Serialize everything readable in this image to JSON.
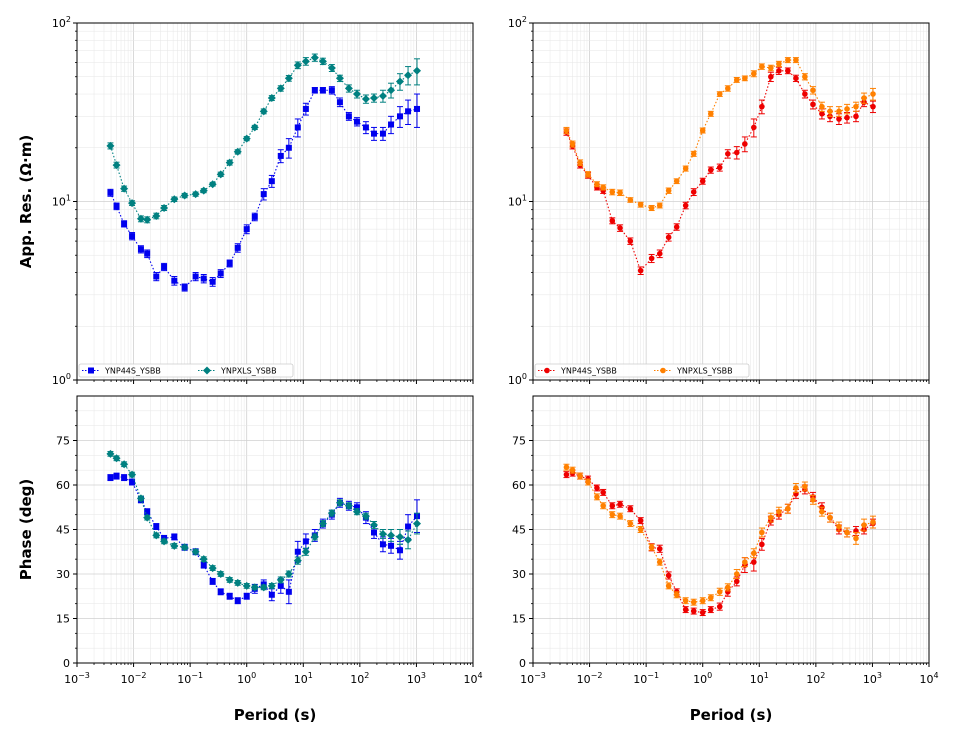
{
  "chart_data": [
    {
      "type": "scatter",
      "panel": "top-left",
      "ylabel": "App. Res. (Ω·m)",
      "xlabel": "",
      "x_scale": "log",
      "y_scale": "log",
      "xlim": [
        0.001,
        10000
      ],
      "ylim": [
        1,
        100
      ],
      "grid": true,
      "legend_placement": "lower-left",
      "series": [
        {
          "name": "YNP44S_YSBB",
          "color": "#0000ee",
          "marker": "square",
          "x": [
            0.0039,
            0.005,
            0.0068,
            0.0094,
            0.0135,
            0.0174,
            0.0252,
            0.0346,
            0.0525,
            0.08,
            0.125,
            0.174,
            0.25,
            0.347,
            0.5,
            0.694,
            1.0,
            1.389,
            2.0,
            2.778,
            4.0,
            5.556,
            8.0,
            11.11,
            16.0,
            22.22,
            32.0,
            44.44,
            64.0,
            88.89,
            128.0,
            177.8,
            256.0,
            355.6,
            512.0,
            711.1,
            1024.0
          ],
          "y": [
            11.2,
            9.4,
            7.5,
            6.4,
            5.4,
            5.1,
            3.8,
            4.3,
            3.6,
            3.3,
            3.8,
            3.7,
            3.55,
            3.95,
            4.5,
            5.5,
            7.0,
            8.2,
            11.0,
            13.0,
            18.0,
            20.0,
            26.0,
            33.0,
            42.0,
            42.0,
            42.0,
            36.0,
            30.0,
            28.0,
            26.0,
            24.0,
            24.0,
            27.0,
            30.0,
            32.0,
            33.0
          ],
          "err": [
            0.5,
            0.4,
            0.3,
            0.3,
            0.25,
            0.25,
            0.2,
            0.2,
            0.2,
            0.15,
            0.2,
            0.2,
            0.2,
            0.2,
            0.2,
            0.3,
            0.4,
            0.4,
            0.8,
            1.0,
            1.5,
            2.5,
            3.0,
            2.5,
            1.5,
            1.5,
            2.0,
            2.0,
            1.5,
            1.5,
            2.0,
            2.0,
            2.0,
            3.0,
            4.0,
            5.0,
            7.0
          ]
        },
        {
          "name": "YNPXLS_YSBB",
          "color": "#008080",
          "marker": "diamond",
          "x": [
            0.0039,
            0.005,
            0.0068,
            0.0094,
            0.0135,
            0.0174,
            0.0252,
            0.0346,
            0.0525,
            0.08,
            0.125,
            0.174,
            0.25,
            0.347,
            0.5,
            0.694,
            1.0,
            1.389,
            2.0,
            2.778,
            4.0,
            5.556,
            8.0,
            11.11,
            16.0,
            22.22,
            32.0,
            44.44,
            64.0,
            88.89,
            128.0,
            177.8,
            256.0,
            355.6,
            512.0,
            711.1,
            1024.0
          ],
          "y": [
            20.5,
            16.0,
            11.8,
            9.8,
            8.0,
            7.9,
            8.3,
            9.2,
            10.3,
            10.8,
            11.0,
            11.5,
            12.5,
            14.2,
            16.5,
            19.0,
            22.5,
            26.0,
            32.0,
            38.0,
            43.0,
            49.0,
            58.0,
            61.0,
            64.0,
            61.0,
            56.0,
            49.0,
            43.0,
            40.0,
            37.5,
            38.0,
            39.0,
            42.0,
            47.0,
            51.0,
            54.0
          ],
          "err": [
            0.8,
            0.6,
            0.4,
            0.3,
            0.3,
            0.3,
            0.3,
            0.3,
            0.3,
            0.3,
            0.3,
            0.3,
            0.3,
            0.4,
            0.5,
            0.5,
            0.6,
            0.7,
            1.0,
            1.2,
            1.5,
            1.8,
            2.5,
            3.0,
            3.0,
            2.5,
            2.5,
            2.0,
            2.0,
            2.0,
            2.0,
            2.0,
            3.0,
            4.0,
            5.0,
            6.0,
            9.0
          ]
        }
      ]
    },
    {
      "type": "scatter",
      "panel": "top-right",
      "ylabel": "",
      "xlabel": "",
      "x_scale": "log",
      "y_scale": "log",
      "xlim": [
        0.001,
        10000
      ],
      "ylim": [
        1,
        100
      ],
      "grid": true,
      "legend_placement": "lower-left",
      "series": [
        {
          "name": "YNP44S_YSBB",
          "color": "#ee0000",
          "marker": "circle",
          "x": [
            0.0039,
            0.005,
            0.0068,
            0.0094,
            0.0135,
            0.0174,
            0.0252,
            0.0346,
            0.0525,
            0.08,
            0.125,
            0.174,
            0.25,
            0.347,
            0.5,
            0.694,
            1.0,
            1.389,
            2.0,
            2.778,
            4.0,
            5.556,
            8.0,
            11.11,
            16.0,
            22.22,
            32.0,
            44.44,
            64.0,
            88.89,
            128.0,
            177.8,
            256.0,
            355.6,
            512.0,
            711.1,
            1024.0
          ],
          "y": [
            24.5,
            20.5,
            16.0,
            14.0,
            12.0,
            11.5,
            7.8,
            7.1,
            6.0,
            4.1,
            4.8,
            5.1,
            6.3,
            7.2,
            9.5,
            11.3,
            13.0,
            15.0,
            15.5,
            18.5,
            18.8,
            21.0,
            26.0,
            34.0,
            50.0,
            54.0,
            54.0,
            49.0,
            40.0,
            35.0,
            31.0,
            30.0,
            29.0,
            29.5,
            30.0,
            36.0,
            34.0
          ],
          "err": [
            1.0,
            0.8,
            0.6,
            0.5,
            0.4,
            0.4,
            0.3,
            0.3,
            0.25,
            0.2,
            0.25,
            0.25,
            0.3,
            0.3,
            0.4,
            0.5,
            0.5,
            0.6,
            0.7,
            1.0,
            1.5,
            2.0,
            3.0,
            3.0,
            3.0,
            2.5,
            2.0,
            2.0,
            2.0,
            2.0,
            2.0,
            2.0,
            2.0,
            2.0,
            2.0,
            2.0,
            2.5
          ]
        },
        {
          "name": "YNPXLS_YSBB",
          "color": "#ff8000",
          "marker": "circle",
          "x": [
            0.0039,
            0.005,
            0.0068,
            0.0094,
            0.0135,
            0.0174,
            0.0252,
            0.0346,
            0.0525,
            0.08,
            0.125,
            0.174,
            0.25,
            0.347,
            0.5,
            0.694,
            1.0,
            1.389,
            2.0,
            2.778,
            4.0,
            5.556,
            8.0,
            11.11,
            16.0,
            22.22,
            32.0,
            44.44,
            64.0,
            88.89,
            128.0,
            177.8,
            256.0,
            355.6,
            512.0,
            711.1,
            1024.0
          ],
          "y": [
            25.0,
            21.0,
            16.5,
            14.2,
            12.5,
            12.0,
            11.3,
            11.2,
            10.2,
            9.6,
            9.2,
            9.5,
            11.5,
            13.0,
            15.3,
            18.5,
            25.0,
            31.0,
            40.0,
            43.0,
            48.0,
            49.0,
            52.0,
            57.0,
            56.0,
            59.0,
            62.0,
            62.0,
            50.0,
            42.0,
            34.0,
            32.0,
            32.0,
            33.0,
            34.0,
            38.0,
            40.0
          ],
          "err": [
            1.0,
            0.8,
            0.6,
            0.5,
            0.4,
            0.4,
            0.4,
            0.4,
            0.3,
            0.3,
            0.3,
            0.3,
            0.4,
            0.4,
            0.5,
            0.6,
            0.8,
            1.0,
            1.2,
            1.5,
            1.5,
            1.5,
            2.0,
            2.0,
            2.0,
            2.0,
            2.0,
            2.0,
            2.0,
            2.0,
            2.0,
            2.0,
            2.0,
            2.0,
            2.0,
            2.5,
            3.0
          ]
        }
      ]
    },
    {
      "type": "scatter",
      "panel": "bottom-left",
      "ylabel": "Phase (deg)",
      "xlabel": "Period (s)",
      "x_scale": "log",
      "y_scale": "linear",
      "xlim": [
        0.001,
        10000
      ],
      "ylim": [
        0,
        90
      ],
      "grid": true,
      "series": [
        {
          "name": "YNP44S_YSBB",
          "color": "#0000ee",
          "marker": "square",
          "x": [
            0.0039,
            0.005,
            0.0068,
            0.0094,
            0.0135,
            0.0174,
            0.0252,
            0.0346,
            0.0525,
            0.08,
            0.125,
            0.174,
            0.25,
            0.347,
            0.5,
            0.694,
            1.0,
            1.389,
            2.0,
            2.778,
            4.0,
            5.556,
            8.0,
            11.11,
            16.0,
            22.22,
            32.0,
            44.44,
            64.0,
            88.89,
            128.0,
            177.8,
            256.0,
            355.6,
            512.0,
            711.1,
            1024.0
          ],
          "y": [
            62.5,
            63.0,
            62.5,
            61.0,
            55.0,
            51.0,
            46.0,
            42.0,
            42.5,
            39.0,
            37.5,
            33.0,
            27.5,
            24.0,
            22.5,
            21.0,
            22.5,
            25.0,
            26.5,
            23.0,
            26.0,
            24.0,
            37.5,
            41.0,
            43.0,
            47.0,
            50.0,
            54.0,
            53.0,
            52.5,
            49.0,
            44.0,
            40.0,
            39.5,
            38.0,
            46.0,
            49.5
          ],
          "err": [
            1.0,
            1.0,
            1.0,
            1.0,
            1.0,
            1.0,
            1.0,
            1.0,
            1.0,
            1.0,
            1.0,
            1.0,
            1.0,
            1.0,
            1.0,
            1.0,
            1.0,
            1.5,
            1.5,
            2.0,
            2.5,
            4.0,
            3.5,
            2.5,
            2.0,
            1.5,
            1.5,
            1.5,
            1.5,
            1.5,
            2.0,
            2.0,
            2.5,
            2.5,
            3.0,
            4.0,
            5.5
          ]
        },
        {
          "name": "YNPXLS_YSBB",
          "color": "#008080",
          "marker": "diamond",
          "x": [
            0.0039,
            0.005,
            0.0068,
            0.0094,
            0.0135,
            0.0174,
            0.0252,
            0.0346,
            0.0525,
            0.08,
            0.125,
            0.174,
            0.25,
            0.347,
            0.5,
            0.694,
            1.0,
            1.389,
            2.0,
            2.778,
            4.0,
            5.556,
            8.0,
            11.11,
            16.0,
            22.22,
            32.0,
            44.44,
            64.0,
            88.89,
            128.0,
            177.8,
            256.0,
            355.6,
            512.0,
            711.1,
            1024.0
          ],
          "y": [
            70.5,
            69.0,
            67.0,
            63.5,
            55.5,
            49.0,
            43.0,
            41.0,
            39.5,
            39.0,
            37.5,
            35.0,
            32.0,
            30.0,
            28.0,
            27.0,
            26.0,
            25.5,
            25.5,
            26.0,
            28.0,
            30.0,
            34.5,
            37.5,
            42.5,
            47.0,
            50.5,
            54.0,
            53.0,
            51.0,
            49.5,
            46.5,
            43.5,
            43.0,
            42.5,
            41.5,
            47.0
          ],
          "err": [
            0.8,
            0.8,
            0.8,
            0.8,
            0.8,
            0.8,
            0.8,
            0.8,
            0.8,
            0.8,
            0.8,
            0.8,
            0.8,
            0.8,
            0.8,
            0.8,
            0.8,
            0.8,
            0.8,
            0.8,
            1.0,
            1.0,
            1.2,
            1.2,
            1.0,
            1.0,
            1.0,
            1.0,
            1.0,
            1.0,
            1.0,
            1.2,
            1.5,
            2.0,
            2.5,
            3.0,
            3.5
          ]
        }
      ]
    },
    {
      "type": "scatter",
      "panel": "bottom-right",
      "ylabel": "",
      "xlabel": "Period (s)",
      "x_scale": "log",
      "y_scale": "linear",
      "xlim": [
        0.001,
        10000
      ],
      "ylim": [
        0,
        90
      ],
      "grid": true,
      "series": [
        {
          "name": "YNP44S_YSBB",
          "color": "#ee0000",
          "marker": "circle",
          "x": [
            0.0039,
            0.005,
            0.0068,
            0.0094,
            0.0135,
            0.0174,
            0.0252,
            0.0346,
            0.0525,
            0.08,
            0.125,
            0.174,
            0.25,
            0.347,
            0.5,
            0.694,
            1.0,
            1.389,
            2.0,
            2.778,
            4.0,
            5.556,
            8.0,
            11.11,
            16.0,
            22.22,
            32.0,
            44.44,
            64.0,
            88.89,
            128.0,
            177.8,
            256.0,
            355.6,
            512.0,
            711.1,
            1024.0
          ],
          "y": [
            63.5,
            64.0,
            63.0,
            62.0,
            59.0,
            57.5,
            53.0,
            53.5,
            52.0,
            48.0,
            39.0,
            38.5,
            29.5,
            24.0,
            18.0,
            17.5,
            17.0,
            18.0,
            19.0,
            24.0,
            27.5,
            33.0,
            34.0,
            40.0,
            48.0,
            50.0,
            52.0,
            57.0,
            58.5,
            56.0,
            52.5,
            49.0,
            45.0,
            44.0,
            44.5,
            45.0,
            47.0
          ],
          "err": [
            1.0,
            1.0,
            1.0,
            1.0,
            1.0,
            1.0,
            1.0,
            1.0,
            1.0,
            1.0,
            1.2,
            1.2,
            1.2,
            1.0,
            1.0,
            1.0,
            1.0,
            1.0,
            1.2,
            1.5,
            1.5,
            2.5,
            3.0,
            2.0,
            1.5,
            1.5,
            1.5,
            1.5,
            1.5,
            1.5,
            1.5,
            1.5,
            1.5,
            1.5,
            1.5,
            1.5,
            1.5
          ]
        },
        {
          "name": "YNPXLS_YSBB",
          "color": "#ff8000",
          "marker": "circle",
          "x": [
            0.0039,
            0.005,
            0.0068,
            0.0094,
            0.0135,
            0.0174,
            0.0252,
            0.0346,
            0.0525,
            0.08,
            0.125,
            0.174,
            0.25,
            0.347,
            0.5,
            0.694,
            1.0,
            1.389,
            2.0,
            2.778,
            4.0,
            5.556,
            8.0,
            11.11,
            16.0,
            22.22,
            32.0,
            44.44,
            64.0,
            88.89,
            128.0,
            177.8,
            256.0,
            355.6,
            512.0,
            711.1,
            1024.0
          ],
          "y": [
            66.0,
            65.0,
            63.0,
            61.0,
            56.0,
            53.0,
            50.0,
            49.5,
            47.0,
            45.0,
            39.0,
            34.0,
            26.0,
            23.0,
            21.0,
            20.5,
            21.0,
            22.0,
            24.0,
            25.5,
            30.0,
            34.0,
            37.0,
            44.0,
            49.0,
            51.0,
            52.0,
            59.0,
            59.5,
            55.0,
            51.0,
            49.0,
            46.0,
            44.0,
            42.0,
            46.5,
            47.5
          ],
          "err": [
            1.0,
            1.0,
            1.0,
            1.0,
            1.0,
            1.0,
            1.0,
            1.0,
            1.0,
            1.0,
            1.0,
            1.0,
            1.0,
            1.0,
            1.0,
            1.0,
            1.0,
            1.0,
            1.2,
            1.2,
            1.5,
            1.5,
            1.5,
            1.5,
            1.5,
            1.5,
            1.5,
            1.5,
            1.5,
            1.5,
            1.5,
            1.5,
            1.5,
            1.5,
            2.0,
            2.0,
            2.0
          ]
        }
      ]
    }
  ]
}
